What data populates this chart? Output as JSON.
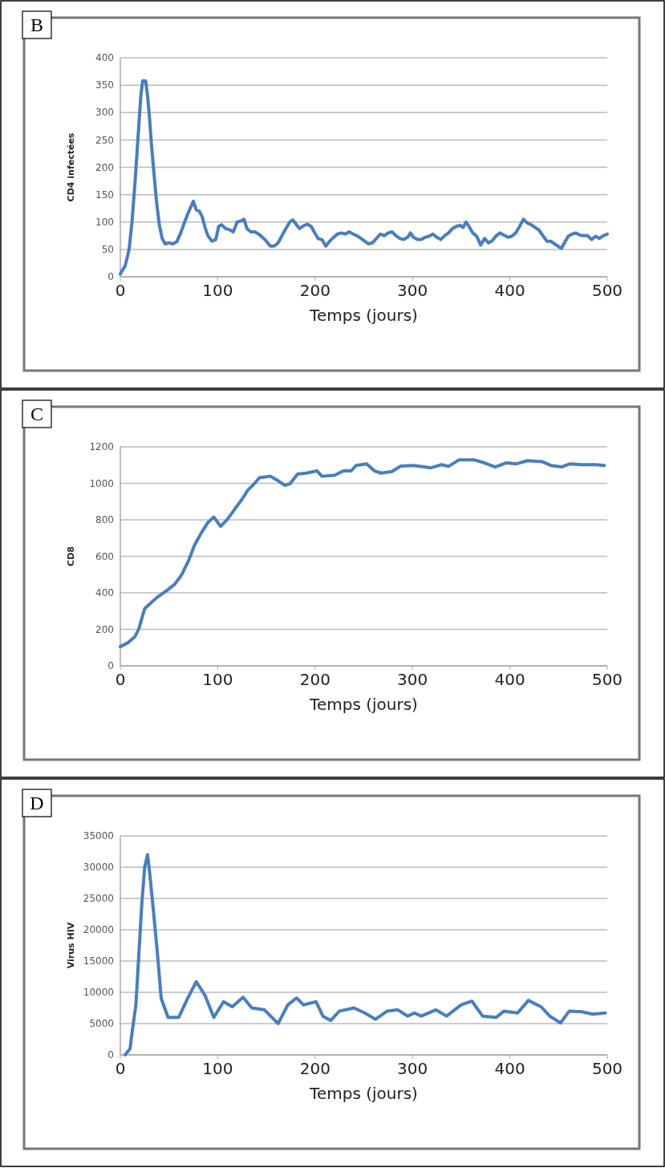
{
  "chart_data": [
    {
      "type": "line",
      "title": "B",
      "xlabel": "Temps (jours)",
      "ylabel": "CD4 infectées",
      "xlim": [
        0,
        500
      ],
      "xticks": [
        0,
        100,
        200,
        300,
        400,
        500
      ],
      "ylim": [
        0,
        400
      ],
      "yticks": [
        0,
        50,
        100,
        150,
        200,
        250,
        300,
        350,
        400
      ],
      "grid": "y",
      "line_style": "solid",
      "marker": "none",
      "series": [
        {
          "color": "#4a7ebb",
          "x": [
            0,
            5,
            9,
            12,
            15,
            18,
            21,
            23,
            26,
            28,
            30,
            32,
            34,
            37,
            40,
            43,
            46,
            50,
            54,
            58,
            62,
            66,
            70,
            73,
            75,
            78,
            81,
            84,
            87,
            90,
            94,
            98,
            101,
            104,
            108,
            112,
            116,
            120,
            124,
            127,
            130,
            134,
            138,
            142,
            146,
            150,
            154,
            158,
            162,
            166,
            170,
            174,
            177,
            181,
            184,
            188,
            192,
            196,
            199,
            203,
            207,
            211,
            215,
            219,
            223,
            227,
            231,
            235,
            239,
            243,
            247,
            251,
            255,
            259,
            263,
            267,
            271,
            275,
            279,
            283,
            287,
            291,
            295,
            298,
            301,
            305,
            309,
            313,
            317,
            321,
            325,
            329,
            333,
            337,
            341,
            345,
            349,
            352,
            355,
            358,
            362,
            366,
            370,
            374,
            378,
            382,
            386,
            390,
            394,
            398,
            402,
            406,
            410,
            414,
            418,
            422,
            426,
            430,
            434,
            438,
            442,
            446,
            450,
            453,
            456,
            460,
            464,
            468,
            472,
            476,
            480,
            484,
            488,
            492,
            496,
            500
          ],
          "values": [
            5,
            20,
            50,
            100,
            170,
            250,
            330,
            358,
            358,
            330,
            290,
            240,
            200,
            140,
            95,
            70,
            60,
            62,
            60,
            64,
            80,
            100,
            118,
            130,
            138,
            122,
            120,
            110,
            90,
            75,
            65,
            68,
            92,
            95,
            88,
            86,
            82,
            100,
            102,
            105,
            88,
            82,
            82,
            78,
            72,
            65,
            56,
            56,
            62,
            75,
            88,
            100,
            104,
            95,
            88,
            93,
            96,
            92,
            82,
            70,
            68,
            56,
            65,
            72,
            78,
            80,
            78,
            82,
            78,
            75,
            70,
            65,
            60,
            62,
            70,
            78,
            75,
            80,
            82,
            75,
            70,
            68,
            72,
            80,
            72,
            68,
            68,
            72,
            74,
            78,
            72,
            68,
            75,
            80,
            88,
            92,
            94,
            90,
            100,
            92,
            80,
            74,
            58,
            70,
            62,
            66,
            75,
            80,
            76,
            72,
            74,
            80,
            92,
            105,
            98,
            95,
            90,
            85,
            75,
            65,
            65,
            60,
            55,
            52,
            62,
            74,
            78,
            80,
            76,
            75,
            75,
            68,
            74,
            70,
            75,
            78
          ]
        }
      ]
    },
    {
      "type": "line",
      "title": "C",
      "xlabel": "Temps (jours)",
      "ylabel": "CD8",
      "xlim": [
        0,
        500
      ],
      "xticks": [
        0,
        100,
        200,
        300,
        400,
        500
      ],
      "ylim": [
        0,
        1200
      ],
      "yticks": [
        0,
        200,
        400,
        600,
        800,
        1000,
        1200
      ],
      "grid": "y",
      "line_style": "solid",
      "marker": "none",
      "series": [
        {
          "color": "#4a7ebb",
          "x": [
            0,
            8,
            15,
            19,
            25,
            37,
            48,
            56,
            63,
            70,
            76,
            83,
            90,
            96,
            103,
            110,
            118,
            125,
            131,
            136,
            143,
            154,
            162,
            169,
            174,
            182,
            191,
            202,
            207,
            220,
            229,
            237,
            242,
            253,
            261,
            268,
            279,
            288,
            301,
            312,
            319,
            330,
            337,
            348,
            363,
            374,
            385,
            396,
            407,
            418,
            433,
            442,
            453,
            462,
            473,
            488,
            497
          ],
          "values": [
            105,
            127,
            160,
            203,
            313,
            372,
            414,
            448,
            499,
            575,
            659,
            727,
            786,
            815,
            764,
            803,
            862,
            913,
            963,
            989,
            1031,
            1039,
            1014,
            989,
            997,
            1051,
            1056,
            1068,
            1039,
            1044,
            1068,
            1068,
            1098,
            1107,
            1068,
            1056,
            1065,
            1095,
            1098,
            1090,
            1085,
            1102,
            1093,
            1129,
            1129,
            1112,
            1090,
            1112,
            1107,
            1124,
            1119,
            1098,
            1090,
            1107,
            1102,
            1102,
            1098
          ]
        }
      ]
    },
    {
      "type": "line",
      "title": "D",
      "xlabel": "Temps (jours)",
      "ylabel": "Virus HIV",
      "xlim": [
        0,
        500
      ],
      "xticks": [
        0,
        100,
        200,
        300,
        400,
        500
      ],
      "ylim": [
        0,
        35000
      ],
      "yticks": [
        0,
        5000,
        10000,
        15000,
        20000,
        25000,
        30000,
        35000
      ],
      "grid": "y",
      "line_style": "solid",
      "marker": "none",
      "series": [
        {
          "color": "#4a7ebb",
          "x": [
            5,
            10,
            12,
            16,
            19,
            22,
            25,
            28,
            30,
            34,
            38,
            42,
            49,
            60,
            69,
            78,
            87,
            96,
            106,
            115,
            126,
            135,
            148,
            162,
            172,
            181,
            188,
            201,
            208,
            216,
            225,
            240,
            251,
            262,
            274,
            285,
            295,
            302,
            309,
            324,
            335,
            350,
            361,
            372,
            386,
            394,
            408,
            419,
            432,
            441,
            452,
            461,
            474,
            485,
            498
          ],
          "values": [
            0,
            1000,
            3500,
            8000,
            16000,
            24000,
            30000,
            32000,
            29300,
            23000,
            16400,
            9000,
            6000,
            6000,
            9000,
            11700,
            9500,
            6000,
            8500,
            7700,
            9200,
            7500,
            7200,
            5000,
            8000,
            9100,
            8000,
            8500,
            6200,
            5500,
            7000,
            7500,
            6700,
            5700,
            7000,
            7200,
            6200,
            6700,
            6200,
            7200,
            6200,
            8000,
            8600,
            6200,
            6000,
            7000,
            6700,
            8700,
            7700,
            6200,
            5100,
            7000,
            6900,
            6500,
            6700
          ]
        }
      ]
    }
  ]
}
